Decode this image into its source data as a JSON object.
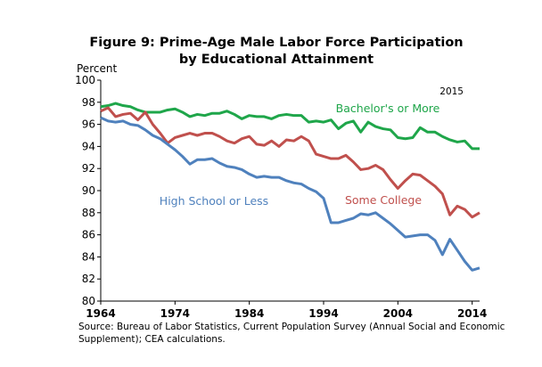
{
  "chart_data": {
    "type": "line",
    "title_lines": [
      "Figure 9: Prime-Age Male Labor Force Participation",
      "by Educational Attainment"
    ],
    "y_label": "Percent",
    "annotation_year": "2015",
    "source_lines": [
      "Source: Bureau of Labor Statistics, Current Population Survey (Annual Social and Economic",
      "Supplement); CEA calculations."
    ],
    "x": [
      1964,
      1965,
      1966,
      1967,
      1968,
      1969,
      1970,
      1971,
      1972,
      1973,
      1974,
      1975,
      1976,
      1977,
      1978,
      1979,
      1980,
      1981,
      1982,
      1983,
      1984,
      1985,
      1986,
      1987,
      1988,
      1989,
      1990,
      1991,
      1992,
      1993,
      1994,
      1995,
      1996,
      1997,
      1998,
      1999,
      2000,
      2001,
      2002,
      2003,
      2004,
      2005,
      2006,
      2007,
      2008,
      2009,
      2010,
      2011,
      2012,
      2013,
      2014,
      2015
    ],
    "xlim": [
      1964,
      2015
    ],
    "xticks": [
      1964,
      1974,
      1984,
      1994,
      2004,
      2014
    ],
    "ylim": [
      80,
      100
    ],
    "yticks": [
      80,
      82,
      84,
      86,
      88,
      90,
      92,
      94,
      96,
      98,
      100
    ],
    "series": [
      {
        "name": "Bachelor's or More",
        "color": "#1fa64a",
        "values": [
          97.6,
          97.7,
          97.9,
          97.7,
          97.6,
          97.3,
          97.1,
          97.1,
          97.1,
          97.3,
          97.4,
          97.1,
          96.7,
          96.9,
          96.8,
          97.0,
          97.0,
          97.2,
          96.9,
          96.5,
          96.8,
          96.7,
          96.7,
          96.5,
          96.8,
          96.9,
          96.8,
          96.8,
          96.2,
          96.3,
          96.2,
          96.4,
          95.6,
          96.1,
          96.3,
          95.3,
          96.2,
          95.8,
          95.6,
          95.5,
          94.8,
          94.7,
          94.8,
          95.7,
          95.3,
          95.3,
          94.9,
          94.6,
          94.4,
          94.5,
          93.8,
          93.8
        ]
      },
      {
        "name": "Some College",
        "color": "#c0504d",
        "values": [
          97.2,
          97.5,
          96.7,
          96.9,
          97.0,
          96.4,
          97.1,
          96.0,
          95.2,
          94.3,
          94.8,
          95.0,
          95.2,
          95.0,
          95.2,
          95.2,
          94.9,
          94.5,
          94.3,
          94.7,
          94.9,
          94.2,
          94.1,
          94.5,
          94.0,
          94.6,
          94.5,
          94.9,
          94.5,
          93.3,
          93.1,
          92.9,
          92.9,
          93.2,
          92.6,
          91.9,
          92.0,
          92.3,
          91.9,
          91.0,
          90.2,
          90.9,
          91.5,
          91.4,
          90.9,
          90.4,
          89.7,
          87.8,
          88.6,
          88.3,
          87.6,
          88.0
        ]
      },
      {
        "name": "High School or Less",
        "color": "#4f81bd",
        "values": [
          96.6,
          96.3,
          96.2,
          96.3,
          96.0,
          95.9,
          95.5,
          95.0,
          94.7,
          94.2,
          93.7,
          93.1,
          92.4,
          92.8,
          92.8,
          92.9,
          92.5,
          92.2,
          92.1,
          91.9,
          91.5,
          91.2,
          91.3,
          91.2,
          91.2,
          90.9,
          90.7,
          90.6,
          90.2,
          89.9,
          89.3,
          87.1,
          87.1,
          87.3,
          87.5,
          87.9,
          87.8,
          88.0,
          87.5,
          87.0,
          86.4,
          85.8,
          85.9,
          86.0,
          86.0,
          85.5,
          84.2,
          85.6,
          84.6,
          83.6,
          82.8,
          83.0
        ]
      }
    ]
  }
}
